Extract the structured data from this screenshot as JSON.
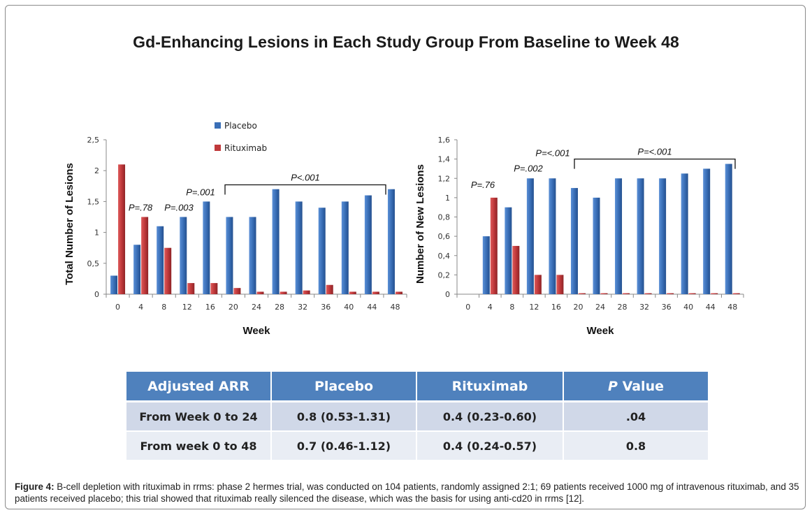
{
  "figure_title": "Gd-Enhancing Lesions in Each Study Group From Baseline to Week 48",
  "colors": {
    "placebo": "#3a6fb7",
    "rituximab": "#c0393b",
    "table_header": "#4f81bd",
    "table_row1": "#d0d8e8",
    "table_row2": "#e9edf4"
  },
  "chart_data": [
    {
      "type": "bar",
      "title": "",
      "xlabel": "Week",
      "ylabel": "Total Number of Lesions",
      "categories": [
        "0",
        "4",
        "8",
        "12",
        "16",
        "20",
        "24",
        "28",
        "32",
        "36",
        "40",
        "44",
        "48"
      ],
      "series": [
        {
          "name": "Placebo",
          "values": [
            0.3,
            0.8,
            1.1,
            1.25,
            1.5,
            1.25,
            1.25,
            1.7,
            1.5,
            1.4,
            1.5,
            1.6,
            1.7
          ]
        },
        {
          "name": "Rituximab",
          "values": [
            2.1,
            1.25,
            0.75,
            0.18,
            0.18,
            0.1,
            0.04,
            0.04,
            0.06,
            0.15,
            0.04,
            0.04,
            0.04
          ]
        }
      ],
      "ylim": [
        0,
        2.5
      ],
      "yticks": [
        "0",
        "0,5",
        "1",
        "1,5",
        "2",
        "2,5"
      ],
      "ytick_values": [
        0,
        0.5,
        1,
        1.5,
        2,
        2.5
      ],
      "legend": {
        "entries": [
          "Placebo",
          "Rituximab"
        ],
        "placement": "top-center"
      },
      "annotations": [
        {
          "text": "P=.78",
          "at_category": "4",
          "y": 1.35
        },
        {
          "text": "P=.003",
          "at_category": "8",
          "y": 1.35
        },
        {
          "text": "P=.001",
          "at_category": "12-16",
          "y": 1.6
        },
        {
          "text": "P<.001",
          "bracket_from": "20",
          "bracket_to": "48",
          "y": 1.77
        }
      ],
      "grid": false
    },
    {
      "type": "bar",
      "title": "",
      "xlabel": "Week",
      "ylabel": "Number of  New Lesions",
      "categories": [
        "0",
        "4",
        "8",
        "12",
        "16",
        "20",
        "24",
        "28",
        "32",
        "36",
        "40",
        "44",
        "48"
      ],
      "series": [
        {
          "name": "Placebo",
          "values": [
            0,
            0.6,
            0.9,
            1.2,
            1.2,
            1.1,
            1.0,
            1.2,
            1.2,
            1.2,
            1.25,
            1.3,
            1.35
          ]
        },
        {
          "name": "Rituximab",
          "values": [
            0,
            1.0,
            0.5,
            0.2,
            0.2,
            0.01,
            0.01,
            0.01,
            0.01,
            0.01,
            0.01,
            0.01,
            0.01
          ]
        }
      ],
      "ylim": [
        0,
        1.6
      ],
      "yticks": [
        "0",
        "0,2",
        "0,4",
        "0,6",
        "0,8",
        "1",
        "1,2",
        "1,4",
        "1,6"
      ],
      "ytick_values": [
        0,
        0.2,
        0.4,
        0.6,
        0.8,
        1.0,
        1.2,
        1.4,
        1.6
      ],
      "annotations": [
        {
          "text": "P=.76",
          "at_category": "4",
          "y": 1.1
        },
        {
          "text": "P=.002",
          "at_category": "8-12",
          "y": 1.27
        },
        {
          "text": "P=<.001",
          "at_category": "12-16",
          "y": 1.43
        },
        {
          "text": "P=<.001",
          "bracket_from": "20",
          "bracket_to": "48",
          "y": 1.4
        }
      ],
      "grid": false
    }
  ],
  "table": {
    "headers": [
      "Adjusted ARR",
      "Placebo",
      "Rituximab",
      "P Value"
    ],
    "header_p_italic": "P",
    "header_p_rest": " Value",
    "rows": [
      [
        "From Week 0  to 24",
        "0.8 (0.53-1.31)",
        "0.4 (0.23-0.60)",
        ".04"
      ],
      [
        "From week 0  to 48",
        "0.7 (0.46-1.12)",
        "0.4 (0.24-0.57)",
        "0.8"
      ]
    ]
  },
  "caption": {
    "label": "Figure 4:",
    "text": " B-cell depletion with rituximab in rrms: phase 2 hermes trial, was conducted on 104 patients, randomly assigned 2:1; 69 patients received 1000 mg of intravenous rituximab, and 35 patients received placebo; this trial showed that rituximab really silenced the disease, which was the basis for using anti-cd20 in rrms [12]."
  }
}
